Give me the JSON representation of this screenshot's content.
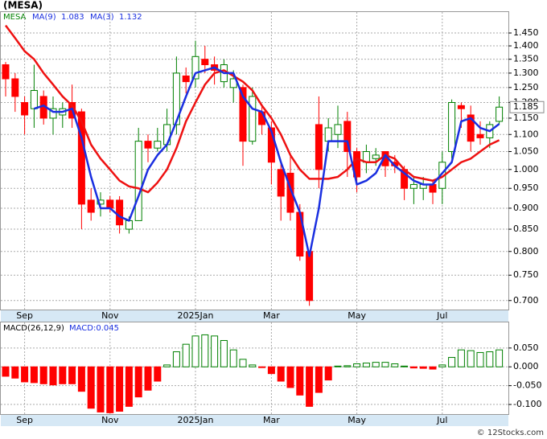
{
  "chart_data": [
    {
      "type": "candlestick",
      "title": "(MESA)",
      "ticker": "MESA",
      "log": true,
      "grid": true,
      "up_color": "#008000",
      "down_color": "#ff0000",
      "categories": [
        null,
        null,
        "Sep",
        null,
        null,
        null,
        null,
        null,
        null,
        null,
        null,
        "Nov",
        null,
        null,
        null,
        null,
        null,
        null,
        null,
        null,
        "2025Jan",
        null,
        null,
        null,
        null,
        null,
        null,
        null,
        "Mar",
        null,
        null,
        null,
        null,
        null,
        null,
        null,
        null,
        "May",
        null,
        null,
        null,
        null,
        null,
        null,
        null,
        null,
        "Jul",
        null,
        null,
        null,
        null,
        null,
        null
      ],
      "open": [
        1.33,
        1.28,
        1.2,
        1.18,
        1.22,
        1.15,
        1.16,
        1.2,
        1.17,
        0.92,
        0.91,
        0.92,
        0.92,
        0.85,
        0.87,
        1.08,
        1.06,
        1.07,
        1.13,
        1.29,
        1.28,
        1.35,
        1.33,
        1.27,
        1.25,
        1.25,
        1.08,
        1.17,
        1.12,
        1.0,
        0.99,
        0.89,
        0.8,
        1.13,
        1.08,
        1.1,
        1.14,
        1.05,
        1.02,
        1.03,
        1.05,
        1.02,
        1.0,
        0.95,
        0.95,
        0.96,
        0.95,
        1.05,
        1.19,
        1.16,
        1.1,
        1.09,
        1.14
      ],
      "high": [
        1.34,
        1.3,
        1.22,
        1.33,
        1.24,
        1.22,
        1.2,
        1.26,
        1.18,
        0.95,
        0.94,
        0.93,
        0.93,
        0.88,
        1.12,
        1.1,
        1.12,
        1.18,
        1.36,
        1.32,
        1.42,
        1.4,
        1.36,
        1.35,
        1.31,
        1.26,
        1.25,
        1.19,
        1.14,
        1.02,
        1.04,
        0.91,
        0.8,
        1.22,
        1.15,
        1.19,
        1.17,
        1.06,
        1.07,
        1.06,
        1.05,
        1.04,
        1.01,
        0.98,
        0.98,
        0.97,
        1.05,
        1.21,
        1.2,
        1.19,
        1.14,
        1.14,
        1.22
      ],
      "low": [
        1.22,
        1.17,
        1.1,
        1.12,
        1.13,
        1.1,
        1.12,
        1.12,
        0.85,
        0.87,
        0.88,
        0.89,
        0.84,
        0.84,
        0.87,
        1.02,
        1.05,
        1.05,
        1.1,
        1.23,
        1.25,
        1.3,
        1.26,
        1.25,
        1.2,
        1.01,
        1.07,
        1.1,
        0.96,
        0.87,
        0.87,
        0.78,
        0.69,
        0.95,
        1.05,
        1.06,
        0.98,
        0.94,
        0.99,
        1.01,
        0.98,
        0.99,
        0.92,
        0.91,
        0.92,
        0.91,
        0.91,
        1.03,
        1.12,
        1.05,
        1.07,
        1.06,
        1.13
      ],
      "close": [
        1.28,
        1.22,
        1.16,
        1.24,
        1.15,
        1.18,
        1.18,
        1.15,
        0.91,
        0.89,
        0.92,
        0.9,
        0.86,
        0.87,
        1.08,
        1.06,
        1.08,
        1.13,
        1.3,
        1.27,
        1.36,
        1.33,
        1.31,
        1.33,
        1.28,
        1.08,
        1.22,
        1.13,
        1.02,
        0.93,
        0.89,
        0.79,
        0.7,
        1.0,
        1.12,
        1.13,
        1.05,
        0.98,
        1.05,
        1.04,
        1.01,
        1.01,
        0.95,
        0.96,
        0.96,
        0.94,
        1.02,
        1.2,
        1.18,
        1.08,
        1.09,
        1.13,
        1.185
      ],
      "price_tag": {
        "value": 1.185,
        "label": "1.185"
      },
      "series": [
        {
          "name": "MA(9)",
          "last": 1.083,
          "color": "#ee1111",
          "values": [
            1.48,
            1.43,
            1.38,
            1.35,
            1.3,
            1.26,
            1.22,
            1.19,
            1.14,
            1.07,
            1.03,
            1.0,
            0.97,
            0.955,
            0.95,
            0.94,
            0.965,
            1.0,
            1.06,
            1.14,
            1.2,
            1.26,
            1.3,
            1.31,
            1.29,
            1.27,
            1.24,
            1.19,
            1.15,
            1.1,
            1.04,
            1.0,
            0.975,
            0.975,
            0.975,
            0.98,
            1.0,
            1.03,
            1.02,
            1.02,
            1.04,
            1.03,
            1.0,
            0.98,
            0.975,
            0.97,
            0.98,
            1.0,
            1.02,
            1.03,
            1.05,
            1.07,
            1.083
          ]
        },
        {
          "name": "MA(3)",
          "last": 1.132,
          "color": "#1a2fe0",
          "values": [
            null,
            null,
            null,
            1.18,
            1.19,
            1.17,
            1.17,
            1.18,
            1.09,
            0.98,
            0.9,
            0.9,
            0.88,
            0.87,
            0.93,
            1.0,
            1.04,
            1.07,
            1.14,
            1.22,
            1.3,
            1.31,
            1.32,
            1.3,
            1.3,
            1.22,
            1.18,
            1.17,
            1.11,
            1.02,
            0.95,
            0.89,
            0.79,
            0.9,
            1.08,
            1.08,
            1.08,
            0.96,
            0.97,
            0.99,
            1.04,
            1.01,
            0.99,
            0.97,
            0.96,
            0.96,
            0.99,
            1.02,
            1.14,
            1.15,
            1.12,
            1.11,
            1.132
          ]
        }
      ],
      "ylim": [
        0.683,
        1.535
      ],
      "yticks": [
        {
          "value": 0.7,
          "label": "0.700"
        },
        {
          "value": 0.75,
          "label": "0.750"
        },
        {
          "value": 0.8,
          "label": "0.800"
        },
        {
          "value": 0.85,
          "label": "0.850"
        },
        {
          "value": 0.9,
          "label": "0.900"
        },
        {
          "value": 0.95,
          "label": "0.950"
        },
        {
          "value": 1.0,
          "label": "1.000"
        },
        {
          "value": 1.05,
          "label": "1.050"
        },
        {
          "value": 1.1,
          "label": "1.100"
        },
        {
          "value": 1.15,
          "label": "1.150"
        },
        {
          "value": 1.2,
          "label": "1.200"
        },
        {
          "value": 1.25,
          "label": "1.250"
        },
        {
          "value": 1.3,
          "label": "1.300"
        },
        {
          "value": 1.35,
          "label": "1.350"
        },
        {
          "value": 1.4,
          "label": "1.400"
        },
        {
          "value": 1.45,
          "label": "1.450"
        }
      ]
    },
    {
      "type": "bar",
      "title": "MACD(26,12,9)",
      "indicator": "MACD:0.045",
      "grid": true,
      "up_color": "#008000",
      "down_color": "#ff0000",
      "categories": [
        null,
        null,
        "Sep",
        null,
        null,
        null,
        null,
        null,
        null,
        null,
        null,
        "Nov",
        null,
        null,
        null,
        null,
        null,
        null,
        null,
        null,
        "2025Jan",
        null,
        null,
        null,
        null,
        null,
        null,
        null,
        "Mar",
        null,
        null,
        null,
        null,
        null,
        null,
        null,
        null,
        "May",
        null,
        null,
        null,
        null,
        null,
        null,
        null,
        null,
        "Jul",
        null,
        null,
        null,
        null,
        null,
        null
      ],
      "values": [
        -0.025,
        -0.03,
        -0.04,
        -0.042,
        -0.045,
        -0.048,
        -0.045,
        -0.045,
        -0.065,
        -0.11,
        -0.12,
        -0.122,
        -0.118,
        -0.105,
        -0.08,
        -0.062,
        -0.038,
        0.005,
        0.04,
        0.06,
        0.082,
        0.085,
        0.082,
        0.07,
        0.045,
        0.02,
        0.005,
        -0.002,
        -0.018,
        -0.038,
        -0.055,
        -0.075,
        -0.105,
        -0.068,
        -0.035,
        0.002,
        0.003,
        0.008,
        0.01,
        0.012,
        0.012,
        0.008,
        0.002,
        -0.003,
        -0.004,
        -0.006,
        0.005,
        0.025,
        0.045,
        0.043,
        0.038,
        0.04,
        0.045
      ],
      "ylim": [
        -0.1255,
        0.118
      ],
      "yticks": [
        {
          "value": -0.1,
          "label": "-0.100"
        },
        {
          "value": -0.05,
          "label": "-0.050"
        },
        {
          "value": 0,
          "label": "0.000"
        },
        {
          "value": 0.05,
          "label": "0.050"
        }
      ]
    }
  ],
  "watermark": "© 12Stocks.com"
}
